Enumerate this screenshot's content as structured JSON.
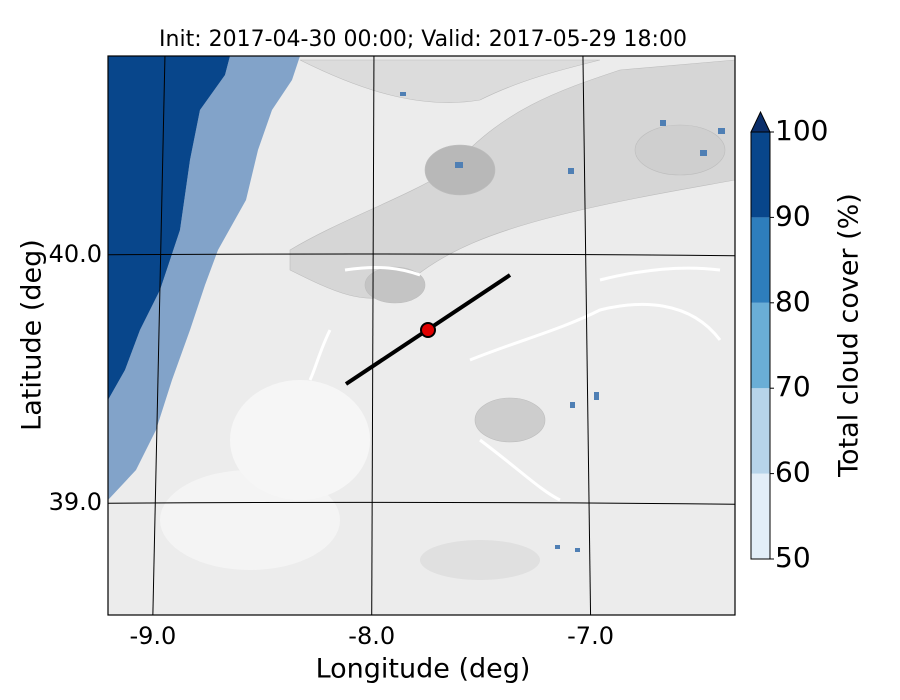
{
  "chart_data": {
    "type": "map",
    "title": "Init: 2017-04-30 00:00; Valid: 2017-05-29 18:00",
    "x_label": "Longitude (deg)",
    "y_label": "Latitude (deg)",
    "xlim": [
      -9.205,
      -6.34
    ],
    "ylim": [
      38.55,
      40.8
    ],
    "xticks": [
      {
        "value": -9,
        "label": "-9.0"
      },
      {
        "value": -8,
        "label": "-8.0"
      },
      {
        "value": -7,
        "label": "-7.0"
      }
    ],
    "yticks": [
      {
        "value": 39,
        "label": "39.0"
      },
      {
        "value": 40,
        "label": "40.0"
      }
    ],
    "grid": true,
    "colorbar": {
      "label": "Total cloud cover (%)",
      "ticks": [
        50,
        60,
        70,
        80,
        90,
        100
      ],
      "colors": [
        "#e3eef8",
        "#b7d4ea",
        "#6aaed6",
        "#2e7ebc",
        "#08468b"
      ],
      "extend_color": "#0b2e6a"
    }
  }
}
